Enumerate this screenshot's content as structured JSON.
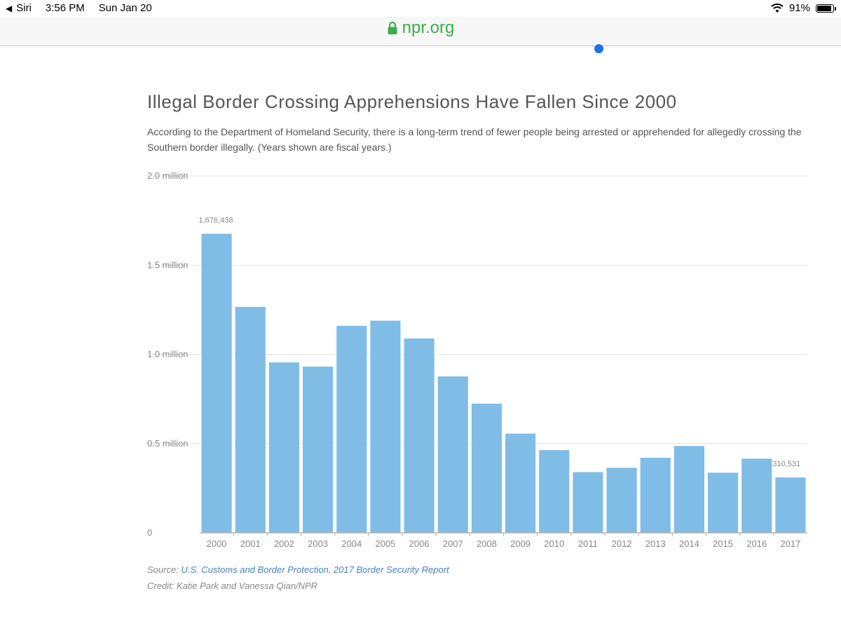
{
  "status_bar": {
    "back_label": "Siri",
    "time": "3:56 PM",
    "date": "Sun Jan 20",
    "battery": "91%",
    "battery_level": 0.91
  },
  "url_bar": {
    "domain": "npr.org"
  },
  "chart_data": {
    "type": "bar",
    "title": "Illegal Border Crossing Apprehensions Have Fallen Since 2000",
    "subtitle": "According to the Department of Homeland Security, there is a long-term trend of fewer people being arrested or apprehended for allegedly crossing the Southern border illegally. (Years shown are fiscal years.)",
    "categories": [
      "2000",
      "2001",
      "2002",
      "2003",
      "2004",
      "2005",
      "2006",
      "2007",
      "2008",
      "2009",
      "2010",
      "2011",
      "2012",
      "2013",
      "2014",
      "2015",
      "2016",
      "2017"
    ],
    "values": [
      1676438,
      1266214,
      955310,
      931557,
      1160395,
      1189075,
      1089092,
      876704,
      723825,
      556041,
      463382,
      340252,
      364768,
      420789,
      486651,
      337117,
      415816,
      310531
    ],
    "ylim": [
      0,
      2000000
    ],
    "y_ticks": [
      {
        "value": 0,
        "label": "0"
      },
      {
        "value": 500000,
        "label": "0.5 million"
      },
      {
        "value": 1000000,
        "label": "1.0 million"
      },
      {
        "value": 1500000,
        "label": "1.5 million"
      },
      {
        "value": 2000000,
        "label": "2.0 million"
      }
    ],
    "data_labels": [
      {
        "index": 0,
        "label": "1,676,438"
      },
      {
        "index": 17,
        "label": "310,531"
      }
    ],
    "bar_color": "#7fbde6",
    "grid": true
  },
  "footer": {
    "source_prefix": "Source: ",
    "source_link_1": "U.S. Customs and Border Protection",
    "source_sep": ", ",
    "source_link_2": "2017 Border Security Report",
    "credit": "Credit: Katie Park and Vanessa Qian/NPR"
  }
}
